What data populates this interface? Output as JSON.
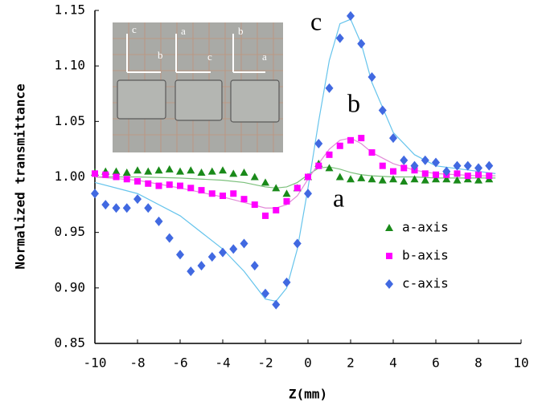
{
  "chart_data": {
    "type": "scatter",
    "xlabel": "Z(mm)",
    "ylabel": "Normalized transmittance",
    "xlim": [
      -10,
      10
    ],
    "xticks": [
      -10,
      -8,
      -6,
      -4,
      -2,
      0,
      2,
      4,
      6,
      8,
      10
    ],
    "ylim": [
      0.85,
      1.15
    ],
    "yticks": [
      {
        "value": 0.85,
        "label": "0.85"
      },
      {
        "value": 0.9,
        "label": "0.90"
      },
      {
        "value": 0.95,
        "label": "0.95"
      },
      {
        "value": 1.0,
        "label": "1.00"
      },
      {
        "value": 1.05,
        "label": "1.05"
      },
      {
        "value": 1.1,
        "label": "1.10"
      },
      {
        "value": 1.15,
        "label": "1.15"
      }
    ],
    "annotations": [
      "c",
      "b",
      "a"
    ],
    "inset_labels": [
      "c",
      "b",
      "a",
      "c",
      "b",
      "a"
    ],
    "x": [
      -10,
      -9.5,
      -9,
      -8.5,
      -8,
      -7.5,
      -7,
      -6.5,
      -6,
      -5.5,
      -5,
      -4.5,
      -4,
      -3.5,
      -3,
      -2.5,
      -2,
      -1.5,
      -1,
      -0.5,
      0,
      0.5,
      1,
      1.5,
      2,
      2.5,
      3,
      3.5,
      4,
      4.5,
      5,
      5.5,
      6,
      6.5,
      7,
      7.5,
      8,
      8.5
    ],
    "series": [
      {
        "name": "a-axis",
        "color": "#1a8a1a",
        "marker": "triangle",
        "values": [
          1.004,
          1.005,
          1.005,
          1.004,
          1.006,
          1.005,
          1.006,
          1.007,
          1.005,
          1.006,
          1.004,
          1.005,
          1.006,
          1.003,
          1.004,
          1.0,
          0.995,
          0.99,
          0.985,
          0.99,
          1.0,
          1.012,
          1.008,
          1.0,
          0.998,
          0.999,
          0.998,
          0.997,
          0.998,
          0.996,
          0.998,
          0.997,
          0.998,
          0.998,
          0.997,
          0.998,
          0.997,
          0.998
        ]
      },
      {
        "name": "b-axis",
        "color": "#ff00ff",
        "marker": "square",
        "values": [
          1.003,
          1.002,
          1.0,
          0.998,
          0.996,
          0.994,
          0.992,
          0.993,
          0.992,
          0.99,
          0.988,
          0.985,
          0.983,
          0.985,
          0.98,
          0.975,
          0.965,
          0.97,
          0.978,
          0.99,
          1.0,
          1.01,
          1.02,
          1.028,
          1.033,
          1.035,
          1.022,
          1.01,
          1.005,
          1.008,
          1.006,
          1.003,
          1.002,
          1.002,
          1.003,
          1.001,
          1.002,
          1.001
        ]
      },
      {
        "name": "c-axis",
        "color": "#4169e1",
        "marker": "diamond",
        "values": [
          0.985,
          0.975,
          0.972,
          0.972,
          0.98,
          0.972,
          0.96,
          0.945,
          0.93,
          0.915,
          0.92,
          0.928,
          0.932,
          0.935,
          0.94,
          0.92,
          0.895,
          0.885,
          0.905,
          0.94,
          0.985,
          1.03,
          1.08,
          1.125,
          1.145,
          1.12,
          1.09,
          1.06,
          1.035,
          1.015,
          1.01,
          1.015,
          1.013,
          1.005,
          1.01,
          1.01,
          1.008,
          1.01
        ]
      }
    ],
    "fit_x": [
      -10,
      -8,
      -6,
      -4,
      -3,
      -2,
      -1.5,
      -1,
      -0.5,
      0,
      0.5,
      1,
      1.5,
      2,
      2.5,
      3,
      4,
      5,
      6,
      8,
      8.8
    ],
    "fits": [
      {
        "color": "#7cc07c",
        "values": [
          1.0,
          1.0,
          0.999,
          0.997,
          0.995,
          0.991,
          0.99,
          0.991,
          0.995,
          1.002,
          1.008,
          1.009,
          1.007,
          1.004,
          1.002,
          1.001,
          1.0,
          1.0,
          0.999,
          0.999,
          0.999
        ]
      },
      {
        "color": "#e28ad8",
        "values": [
          1.0,
          0.997,
          0.99,
          0.982,
          0.977,
          0.972,
          0.972,
          0.975,
          0.983,
          0.998,
          1.012,
          1.025,
          1.033,
          1.035,
          1.03,
          1.022,
          1.012,
          1.006,
          1.003,
          1.001,
          1.001
        ]
      },
      {
        "color": "#66c4ec",
        "values": [
          0.995,
          0.985,
          0.965,
          0.935,
          0.915,
          0.89,
          0.888,
          0.9,
          0.935,
          0.99,
          1.05,
          1.105,
          1.138,
          1.142,
          1.12,
          1.085,
          1.04,
          1.02,
          1.01,
          1.005,
          1.003
        ]
      }
    ]
  }
}
